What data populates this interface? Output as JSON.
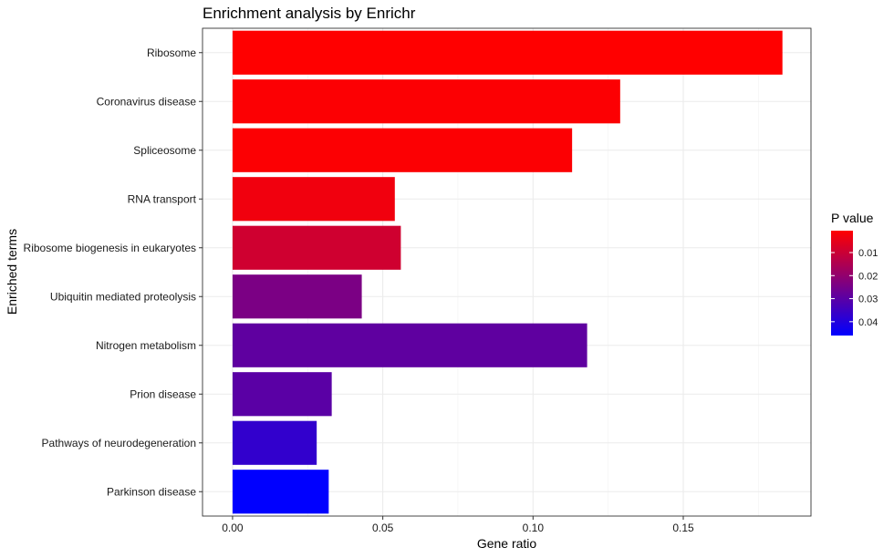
{
  "chart_data": {
    "type": "bar",
    "orientation": "horizontal",
    "title": "Enrichment analysis by Enrichr",
    "xlabel": "Gene ratio",
    "ylabel": "Enriched terms",
    "xlim": [
      -0.01,
      0.1925
    ],
    "x_ticks": [
      0.0,
      0.05,
      0.1,
      0.15
    ],
    "x_tick_labels": [
      "0.00",
      "0.05",
      "0.10",
      "0.15"
    ],
    "grid": true,
    "categories": [
      "Ribosome",
      "Coronavirus disease",
      "Spliceosome",
      "RNA transport",
      "Ribosome biogenesis in eukaryotes",
      "Ubiquitin mediated proteolysis",
      "Nitrogen metabolism",
      "Prion disease",
      "Pathways of neurodegeneration",
      "Parkinson disease"
    ],
    "values": [
      0.183,
      0.129,
      0.113,
      0.054,
      0.056,
      0.043,
      0.118,
      0.033,
      0.028,
      0.032
    ],
    "p_values": [
      0.0005,
      0.001,
      0.001,
      0.003,
      0.009,
      0.024,
      0.029,
      0.03,
      0.037,
      0.046
    ],
    "legend": {
      "title": "P value",
      "position": "right",
      "ticks": [
        0.01,
        0.02,
        0.03,
        0.04
      ],
      "tick_labels": [
        "0.01",
        "0.02",
        "0.03",
        "0.04"
      ],
      "range": [
        0.0005,
        0.046
      ],
      "low_color": "#ff0000",
      "high_color": "#0000ff"
    }
  }
}
